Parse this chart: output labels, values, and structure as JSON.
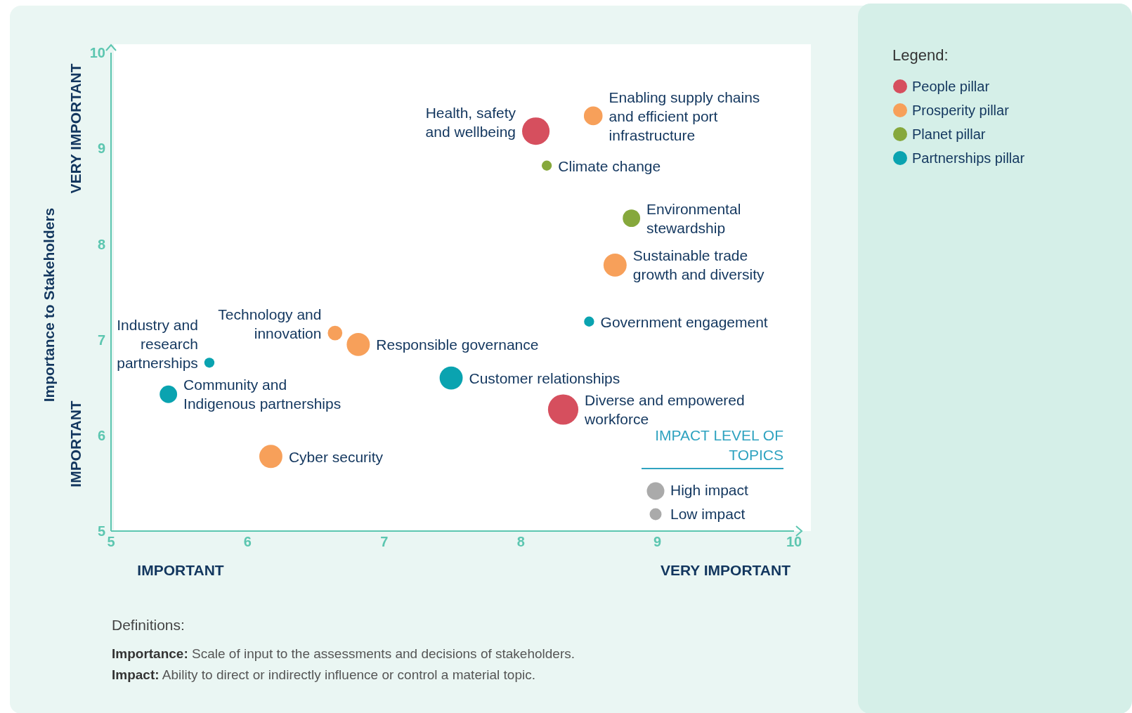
{
  "chart_data": {
    "type": "bubble",
    "ylabel": "Importance to Stakeholders",
    "legend_title": "Legend:",
    "legend": "right",
    "xlim": [
      5,
      10
    ],
    "xticks": [
      5,
      6,
      7,
      8,
      9,
      10
    ],
    "ylim": [
      5,
      10
    ],
    "yticks": [
      5,
      6,
      7,
      8,
      9,
      10
    ],
    "series": [
      {
        "name": "People pillar",
        "color": "#d64f5e",
        "x": [
          8.11,
          8.31
        ],
        "values": [
          9.18,
          6.27
        ],
        "sizes": [
          0.82,
          1
        ]
      },
      {
        "name": "Prosperity pillar",
        "color": "#f7a05a",
        "x": [
          8.53,
          8.69,
          6.64,
          6.81,
          6.17
        ],
        "values": [
          9.34,
          7.78,
          7.07,
          6.95,
          5.78
        ],
        "sizes": [
          0.38,
          0.58,
          0.23,
          0.58,
          0.58
        ]
      },
      {
        "name": "Planet pillar",
        "color": "#86a83c",
        "x": [
          8.19,
          8.81
        ],
        "values": [
          8.82,
          8.27
        ],
        "sizes": [
          0.11,
          0.33
        ]
      },
      {
        "name": "Partnerships pillar",
        "color": "#0aa3b0",
        "x": [
          8.5,
          5.72,
          5.42,
          7.49
        ],
        "values": [
          7.19,
          6.76,
          6.43,
          6.6
        ],
        "sizes": [
          0.11,
          0.11,
          0.33,
          0.58
        ]
      }
    ],
    "annotations": [
      "IMPORTANT",
      "VERY IMPORTANT",
      "IMPORTANT",
      "VERY IMPORTANT",
      "IMPACT LEVEL OF TOPICS",
      "High impact",
      "Low impact",
      "Definitions:",
      "Importance: Scale of input to the assessments and decisions of stakeholders.",
      "Impact: Ability to direct or indirectly influence or control a material topic.",
      {
        "text": "Health, safety and wellbeing",
        "x": 8.11,
        "y": 9.18
      },
      {
        "text": "Diverse and empowered workforce",
        "x": 8.31,
        "y": 6.27
      },
      {
        "text": "Enabling supply chains and efficient port infrastructure",
        "x": 8.53,
        "y": 9.34
      },
      {
        "text": "Sustainable trade growth and diversity",
        "x": 8.69,
        "y": 7.78
      },
      {
        "text": "Technology and innovation",
        "x": 6.64,
        "y": 7.07
      },
      {
        "text": "Responsible governance",
        "x": 6.81,
        "y": 6.95
      },
      {
        "text": "Cyber security",
        "x": 6.17,
        "y": 5.78
      },
      {
        "text": "Climate change",
        "x": 8.19,
        "y": 8.82
      },
      {
        "text": "Environmental stewardship",
        "x": 8.81,
        "y": 8.27
      },
      {
        "text": "Government engagement",
        "x": 8.5,
        "y": 7.19
      },
      {
        "text": "Industry and research partnerships",
        "x": 5.72,
        "y": 6.76
      },
      {
        "text": "Community and Indigenous partnerships",
        "x": 5.42,
        "y": 6.43
      },
      {
        "text": "Customer relationships",
        "x": 7.49,
        "y": 6.6
      }
    ]
  }
}
